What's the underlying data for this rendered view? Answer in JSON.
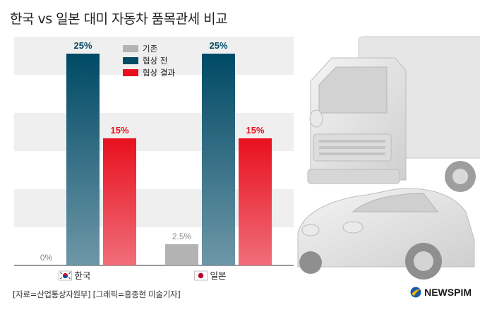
{
  "title": "한국 vs 일본 대미 자동차 품목관세 비교",
  "source": "[자료=산업통상자원부] [그래픽=홍종현 미술기자]",
  "brand": "NEWSPIM",
  "colors": {
    "base": "#b3b3b3",
    "before_top": "#004a65",
    "before_bottom": "#6e97a8",
    "after_top": "#e8101e",
    "after_bottom": "#f06e7a",
    "band": "#efefef",
    "brand_blue": "#1c5aa8",
    "brand_yellow": "#f2b705"
  },
  "chart_data": {
    "type": "bar",
    "categories": [
      "한국",
      "일본"
    ],
    "category_icons": [
      "south-korea-flag-icon",
      "japan-flag-icon"
    ],
    "series": [
      {
        "name": "기존",
        "values": [
          0,
          2.5
        ],
        "labels": [
          "0%",
          "2.5%"
        ]
      },
      {
        "name": "협상 전",
        "values": [
          25,
          25
        ],
        "labels": [
          "25%",
          "25%"
        ]
      },
      {
        "name": "협상 결과",
        "values": [
          15,
          15
        ],
        "labels": [
          "15%",
          "15%"
        ]
      }
    ],
    "ylim": [
      0,
      27
    ],
    "legend_position": "top-left"
  }
}
